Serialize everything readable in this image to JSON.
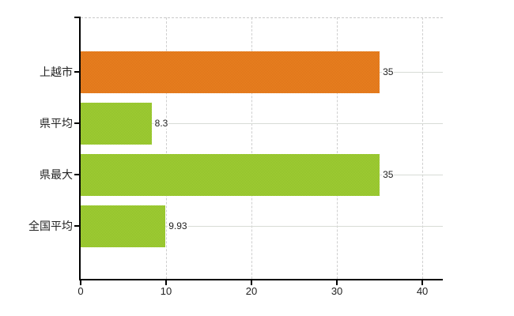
{
  "chart_data": {
    "type": "bar",
    "orientation": "horizontal",
    "title": "",
    "categories": [
      "上越市",
      "県平均",
      "県最大",
      "全国平均"
    ],
    "values": [
      35,
      8.3,
      35,
      9.93
    ],
    "value_labels": [
      "35",
      "8.3",
      "35",
      "9.93"
    ],
    "x_ticks": [
      "0",
      "10",
      "20",
      "30",
      "40"
    ],
    "xlim": [
      0,
      42.4
    ],
    "grid": {
      "vertical": "dashed",
      "horizontal": "solid",
      "plot_top_border": "dashed"
    },
    "legend": "none",
    "bar_colors": [
      {
        "base": "#ee8a22",
        "dot": "#d96b18"
      },
      {
        "base": "#a6d338",
        "dot": "#8cbb28"
      },
      {
        "base": "#a6d338",
        "dot": "#8cbb28"
      },
      {
        "base": "#a6d338",
        "dot": "#8cbb28"
      }
    ]
  },
  "colors": {
    "background": "#ffffff",
    "axis": "#000000",
    "vertical_grid": "#cfcfcf",
    "horizontal_grid": "#d8dcd6",
    "plot_top_border": "#c8c8c8",
    "text": "#222222"
  }
}
